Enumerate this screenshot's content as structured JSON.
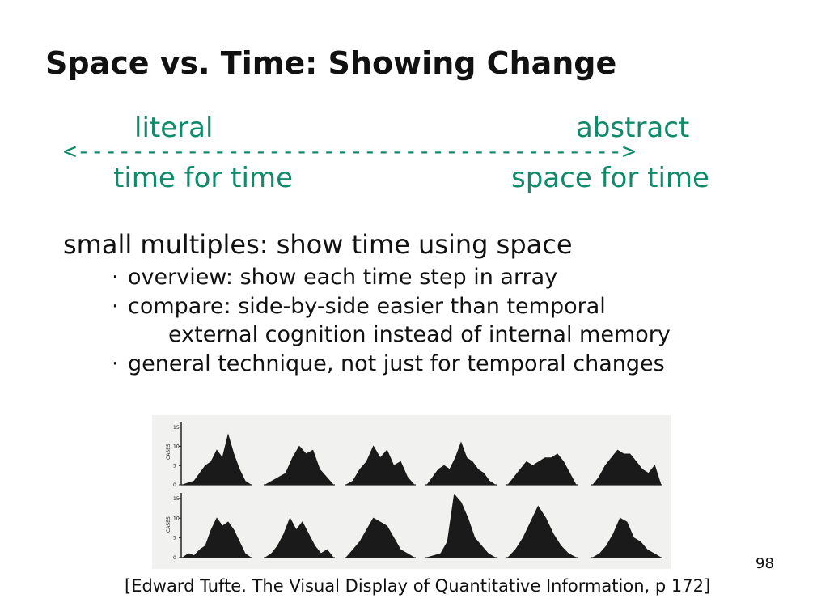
{
  "slide": {
    "title": "Space vs. Time: Showing Change",
    "axis": {
      "left_top": "literal",
      "right_top": "abstract",
      "arrow": "<---------------------------------------->",
      "left_bottom": "time for time",
      "right_bottom": "space for time"
    },
    "heading": "small multiples: show time using space",
    "bullets": [
      {
        "marker": "·",
        "text": "overview: show each time step in array"
      },
      {
        "marker": "·",
        "text": "compare: side-by-side easier than temporal"
      },
      {
        "marker": "",
        "text": "external cognition instead of internal memory"
      },
      {
        "marker": "·",
        "text": "general technique, not just for temporal changes"
      }
    ],
    "figure": {
      "y_axis_label": "CASES",
      "row1_ticks": [
        "15",
        "10",
        "5",
        "0"
      ],
      "row2_ticks": [
        "15",
        "10",
        "5",
        "0"
      ],
      "row1_series": [
        [
          0,
          0.5,
          1,
          3,
          5,
          6,
          9,
          7,
          13,
          8,
          4,
          1,
          0
        ],
        [
          0,
          1,
          2,
          3,
          7,
          10,
          8,
          9,
          4,
          2,
          0
        ],
        [
          0,
          1,
          4,
          6,
          10,
          7,
          9,
          5,
          6,
          2,
          0
        ],
        [
          0,
          2,
          4,
          5,
          4,
          7,
          11,
          7,
          6,
          4,
          3,
          1,
          0
        ],
        [
          0,
          2,
          4,
          6,
          5,
          6,
          7,
          7,
          8,
          6,
          3,
          0
        ],
        [
          0,
          2,
          5,
          7,
          9,
          8,
          8,
          6,
          4,
          3,
          5,
          0
        ]
      ],
      "row2_series": [
        [
          0,
          1,
          0.5,
          2,
          3,
          7,
          10,
          8,
          9,
          7,
          4,
          1,
          0
        ],
        [
          0,
          1,
          3,
          6,
          10,
          7,
          9,
          6,
          3,
          1,
          2,
          0
        ],
        [
          0,
          2,
          4,
          7,
          10,
          9,
          8,
          5,
          2,
          1,
          0
        ],
        [
          0,
          0.5,
          1,
          4,
          16,
          14,
          10,
          5,
          3,
          1,
          0
        ],
        [
          0,
          2,
          5,
          9,
          13,
          10,
          6,
          3,
          1,
          0
        ],
        [
          0,
          1,
          3,
          6,
          10,
          9,
          5,
          4,
          2,
          1,
          0
        ]
      ]
    },
    "page_number": "98",
    "citation": "[Edward Tufte. The Visual Display of Quantitative Information, p 172]"
  }
}
